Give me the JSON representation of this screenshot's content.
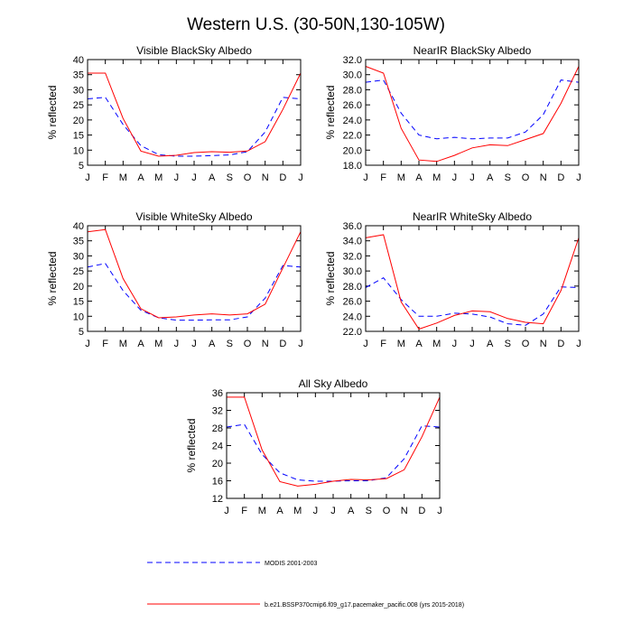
{
  "title": "Western U.S. (30-50N,130-105W)",
  "legend": [
    {
      "label": "MODIS 2001-2003",
      "style": "dashed",
      "color": "#0000ff"
    },
    {
      "label": "b.e21.BSSP370cmip6.f09_g17.pacemaker_pacific.008 (yrs 2015-2018)",
      "style": "solid",
      "color": "#ff0000"
    }
  ],
  "chart_data": [
    {
      "type": "line",
      "title": "Visible BlackSky Albedo",
      "ylabel": "% reflected",
      "categories": [
        "J",
        "F",
        "M",
        "A",
        "M",
        "J",
        "J",
        "A",
        "S",
        "O",
        "N",
        "D",
        "J"
      ],
      "ylim": [
        5,
        40
      ],
      "yticks": [
        "5",
        "10",
        "15",
        "20",
        "25",
        "30",
        "35",
        "40"
      ],
      "series": [
        {
          "key": "modis",
          "values": [
            27.0,
            27.5,
            18.5,
            11.5,
            8.5,
            8.0,
            8.0,
            8.2,
            8.4,
            9.5,
            16.0,
            27.5,
            27.0
          ]
        },
        {
          "key": "model",
          "values": [
            35.5,
            35.5,
            20.5,
            9.7,
            8.0,
            8.3,
            9.2,
            9.5,
            9.3,
            9.7,
            12.8,
            23.5,
            35.5
          ]
        }
      ]
    },
    {
      "type": "line",
      "title": "NearIR BlackSky Albedo",
      "ylabel": "% reflected",
      "categories": [
        "J",
        "F",
        "M",
        "A",
        "M",
        "J",
        "J",
        "A",
        "S",
        "O",
        "N",
        "D",
        "J"
      ],
      "ylim": [
        18,
        32
      ],
      "yticks": [
        "18.0",
        "20.0",
        "22.0",
        "24.0",
        "26.0",
        "28.0",
        "30.0",
        "32.0"
      ],
      "series": [
        {
          "key": "modis",
          "values": [
            29.0,
            29.3,
            24.9,
            22.0,
            21.5,
            21.7,
            21.5,
            21.6,
            21.6,
            22.4,
            24.7,
            29.3,
            29.0
          ]
        },
        {
          "key": "model",
          "values": [
            31.1,
            30.2,
            22.9,
            18.7,
            18.5,
            19.3,
            20.3,
            20.7,
            20.6,
            21.4,
            22.2,
            26.2,
            31.1
          ]
        }
      ]
    },
    {
      "type": "line",
      "title": "Visible WhiteSky Albedo",
      "ylabel": "% reflected",
      "categories": [
        "J",
        "F",
        "M",
        "A",
        "M",
        "J",
        "J",
        "A",
        "S",
        "O",
        "N",
        "D",
        "J"
      ],
      "ylim": [
        5,
        40
      ],
      "yticks": [
        "5",
        "10",
        "15",
        "20",
        "25",
        "30",
        "35",
        "40"
      ],
      "series": [
        {
          "key": "modis",
          "values": [
            26.3,
            27.5,
            18.5,
            12.0,
            9.5,
            8.7,
            8.7,
            8.8,
            8.8,
            9.8,
            16.0,
            26.8,
            26.3
          ]
        },
        {
          "key": "model",
          "values": [
            38.0,
            38.7,
            22.5,
            12.5,
            9.5,
            9.8,
            10.4,
            10.8,
            10.4,
            10.8,
            14.0,
            26.0,
            38.0
          ]
        }
      ]
    },
    {
      "type": "line",
      "title": "NearIR WhiteSky Albedo",
      "ylabel": "% reflected",
      "categories": [
        "J",
        "F",
        "M",
        "A",
        "M",
        "J",
        "J",
        "A",
        "S",
        "O",
        "N",
        "D",
        "J"
      ],
      "ylim": [
        22,
        36
      ],
      "yticks": [
        "22.0",
        "24.0",
        "26.0",
        "28.0",
        "30.0",
        "32.0",
        "34.0",
        "36.0"
      ],
      "series": [
        {
          "key": "modis",
          "values": [
            27.8,
            29.1,
            26.2,
            24.0,
            24.0,
            24.4,
            24.3,
            23.9,
            23.0,
            22.8,
            24.3,
            27.9,
            27.8
          ]
        },
        {
          "key": "model",
          "values": [
            34.4,
            34.8,
            25.9,
            22.3,
            23.1,
            24.1,
            24.7,
            24.6,
            23.7,
            23.2,
            23.0,
            27.4,
            34.4
          ]
        }
      ]
    },
    {
      "type": "line",
      "title": "All Sky Albedo",
      "ylabel": "% reflected",
      "categories": [
        "J",
        "F",
        "M",
        "A",
        "M",
        "J",
        "J",
        "A",
        "S",
        "O",
        "N",
        "D",
        "J"
      ],
      "ylim": [
        12,
        36
      ],
      "yticks": [
        "12",
        "16",
        "20",
        "24",
        "28",
        "32",
        "36"
      ],
      "series": [
        {
          "key": "modis",
          "values": [
            28.2,
            28.8,
            22.0,
            17.8,
            16.2,
            15.9,
            15.9,
            16.0,
            16.0,
            16.7,
            21.0,
            28.5,
            28.2
          ]
        },
        {
          "key": "model",
          "values": [
            35.0,
            35.0,
            23.0,
            15.8,
            14.8,
            15.2,
            15.9,
            16.3,
            16.2,
            16.5,
            18.5,
            26.0,
            35.0
          ]
        }
      ]
    }
  ]
}
